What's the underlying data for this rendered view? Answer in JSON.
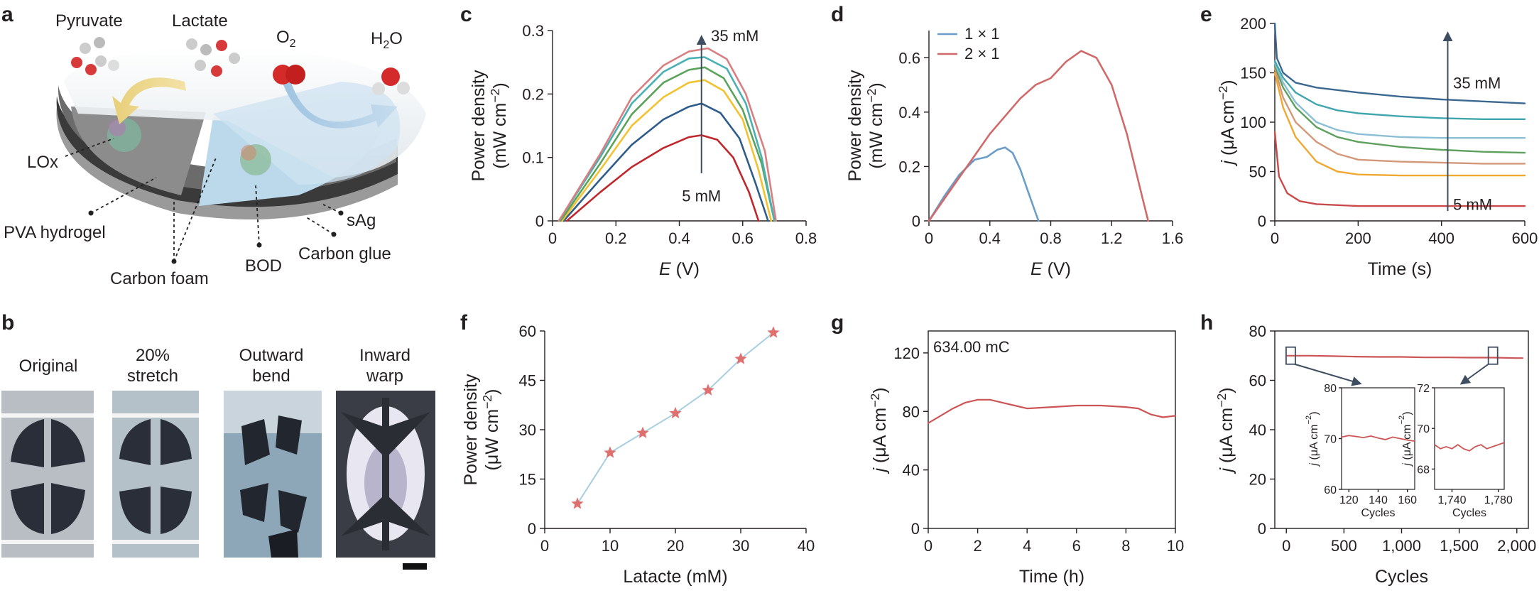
{
  "panels": {
    "a": {
      "letter": "a",
      "labels": {
        "pyruvate": "Pyruvate",
        "lactate": "Lactate",
        "o2": "O",
        "o2_sub": "2",
        "h2o_h": "H",
        "h2o_sub": "2",
        "h2o_o": "O",
        "lox": "LOx",
        "pva": "PVA hydrogel",
        "carbon_foam": "Carbon foam",
        "bod": "BOD",
        "carbon_glue": "Carbon glue",
        "sag": "sAg"
      }
    },
    "b": {
      "letter": "b",
      "photos": [
        {
          "line1": "Original",
          "line2": ""
        },
        {
          "line1": "20%",
          "line2": "stretch"
        },
        {
          "line1": "Outward",
          "line2": "bend"
        },
        {
          "line1": "Inward",
          "line2": "warp"
        }
      ]
    },
    "c": {
      "letter": "c",
      "ann_top": "35 mM",
      "ann_bottom": "5 mM"
    },
    "d": {
      "letter": "d"
    },
    "e": {
      "letter": "e",
      "ann_top": "35 mM",
      "ann_bottom": "5 mM"
    },
    "f": {
      "letter": "f"
    },
    "g": {
      "letter": "g",
      "annotation": "634.00 mC"
    },
    "h": {
      "letter": "h"
    }
  },
  "colors": {
    "c_series": [
      "#c0272d",
      "#2f5d8a",
      "#f2c230",
      "#5ba35b",
      "#4ab0b3",
      "#d97f82"
    ],
    "d_series": [
      "#6a9ec8",
      "#d06a6a"
    ],
    "e_series": [
      "#c94a4a",
      "#f0a830",
      "#d3987a",
      "#5fa05f",
      "#8bbfd6",
      "#3fa6ad",
      "#3b6891"
    ],
    "f_line": "#a8cfe0",
    "f_marker": "#e07070",
    "trace_red": "#cc5555",
    "inset_box": "#3e4e60"
  },
  "chart_data": [
    {
      "id": "c",
      "type": "line",
      "xlabel": "E (V)",
      "ylabel": "Power density (mW cm−2)",
      "xlim": [
        0,
        0.8
      ],
      "ylim": [
        0,
        0.3
      ],
      "xticks": [
        "0",
        "0.2",
        "0.4",
        "0.6",
        "0.8"
      ],
      "yticks": [
        "0",
        "0.1",
        "0.2",
        "0.3"
      ],
      "series": [
        {
          "x": [
            0.045,
            0.15,
            0.25,
            0.35,
            0.43,
            0.47,
            0.52,
            0.57,
            0.62,
            0.65
          ],
          "y": [
            0,
            0.045,
            0.085,
            0.115,
            0.132,
            0.135,
            0.128,
            0.1,
            0.045,
            0
          ]
        },
        {
          "x": [
            0.035,
            0.15,
            0.25,
            0.35,
            0.43,
            0.47,
            0.53,
            0.59,
            0.64,
            0.68
          ],
          "y": [
            0,
            0.065,
            0.12,
            0.16,
            0.18,
            0.185,
            0.17,
            0.13,
            0.06,
            0
          ]
        },
        {
          "x": [
            0.03,
            0.15,
            0.25,
            0.35,
            0.43,
            0.48,
            0.54,
            0.6,
            0.65,
            0.69
          ],
          "y": [
            0,
            0.08,
            0.15,
            0.195,
            0.218,
            0.222,
            0.205,
            0.16,
            0.08,
            0
          ]
        },
        {
          "x": [
            0.025,
            0.15,
            0.25,
            0.35,
            0.43,
            0.48,
            0.54,
            0.6,
            0.66,
            0.7
          ],
          "y": [
            0,
            0.09,
            0.168,
            0.218,
            0.238,
            0.242,
            0.225,
            0.175,
            0.09,
            0
          ]
        },
        {
          "x": [
            0.02,
            0.15,
            0.25,
            0.35,
            0.43,
            0.48,
            0.55,
            0.61,
            0.66,
            0.7
          ],
          "y": [
            0,
            0.1,
            0.185,
            0.235,
            0.256,
            0.258,
            0.24,
            0.185,
            0.1,
            0
          ]
        },
        {
          "x": [
            0.02,
            0.15,
            0.25,
            0.35,
            0.43,
            0.49,
            0.55,
            0.61,
            0.67,
            0.705
          ],
          "y": [
            0,
            0.105,
            0.195,
            0.245,
            0.267,
            0.272,
            0.255,
            0.2,
            0.11,
            0
          ]
        }
      ]
    },
    {
      "id": "d",
      "type": "line",
      "xlabel": "E (V)",
      "ylabel": "Power density (mW cm−2)",
      "xlim": [
        0,
        1.6
      ],
      "ylim": [
        0,
        0.7
      ],
      "xticks": [
        "0",
        "0.4",
        "0.8",
        "1.2",
        "1.6"
      ],
      "yticks": [
        "0",
        "0.2",
        "0.4",
        "0.6"
      ],
      "series": [
        {
          "name": "1 × 1",
          "x": [
            0,
            0.1,
            0.2,
            0.3,
            0.38,
            0.45,
            0.5,
            0.55,
            0.6,
            0.65,
            0.7,
            0.72
          ],
          "y": [
            0,
            0.09,
            0.17,
            0.225,
            0.235,
            0.262,
            0.27,
            0.25,
            0.19,
            0.11,
            0.03,
            0
          ]
        },
        {
          "name": "2 × 1",
          "x": [
            0,
            0.2,
            0.4,
            0.6,
            0.7,
            0.8,
            0.9,
            1.0,
            1.1,
            1.2,
            1.3,
            1.4,
            1.44
          ],
          "y": [
            0,
            0.16,
            0.32,
            0.45,
            0.5,
            0.525,
            0.585,
            0.625,
            0.6,
            0.5,
            0.32,
            0.09,
            0
          ]
        }
      ]
    },
    {
      "id": "e",
      "type": "line",
      "xlabel": "Time (s)",
      "ylabel": "j (μA cm−2)",
      "xlim": [
        0,
        600
      ],
      "ylim": [
        0,
        200
      ],
      "xticks": [
        "0",
        "200",
        "400",
        "600"
      ],
      "yticks": [
        "0",
        "50",
        "100",
        "150",
        "200"
      ],
      "series": [
        {
          "x": [
            0,
            10,
            30,
            60,
            100,
            200,
            300,
            400,
            500,
            600
          ],
          "y": [
            90,
            45,
            28,
            20,
            17,
            15,
            15,
            15,
            15,
            15
          ]
        },
        {
          "x": [
            0,
            20,
            50,
            100,
            150,
            200,
            300,
            400,
            500,
            600
          ],
          "y": [
            150,
            115,
            85,
            60,
            50,
            47,
            46,
            46,
            46,
            46
          ]
        },
        {
          "x": [
            0,
            20,
            50,
            100,
            150,
            200,
            300,
            400,
            500,
            600
          ],
          "y": [
            155,
            125,
            100,
            80,
            68,
            62,
            60,
            59,
            58,
            58
          ]
        },
        {
          "x": [
            0,
            20,
            50,
            100,
            150,
            200,
            300,
            400,
            500,
            600
          ],
          "y": [
            157,
            135,
            115,
            95,
            85,
            80,
            75,
            72,
            70,
            69
          ]
        },
        {
          "x": [
            0,
            20,
            50,
            100,
            150,
            200,
            300,
            400,
            500,
            600
          ],
          "y": [
            160,
            140,
            120,
            100,
            92,
            88,
            85,
            84,
            84,
            84
          ]
        },
        {
          "x": [
            0,
            20,
            50,
            100,
            150,
            200,
            300,
            400,
            500,
            600
          ],
          "y": [
            162,
            145,
            130,
            118,
            112,
            109,
            106,
            104,
            103,
            103
          ]
        },
        {
          "x": [
            0,
            5,
            20,
            50,
            100,
            200,
            300,
            400,
            500,
            600
          ],
          "y": [
            200,
            165,
            150,
            140,
            135,
            130,
            126,
            123,
            121,
            119
          ]
        }
      ]
    },
    {
      "id": "f",
      "type": "line",
      "xlabel": "Latacte (mM)",
      "ylabel": "Power density (μW cm−2)",
      "xlim": [
        0,
        40
      ],
      "ylim": [
        0,
        60
      ],
      "xticks": [
        "0",
        "10",
        "20",
        "30",
        "40"
      ],
      "yticks": [
        "0",
        "15",
        "30",
        "45",
        "60"
      ],
      "series": [
        {
          "x": [
            5,
            10,
            15,
            20,
            25,
            30,
            35
          ],
          "y": [
            7.5,
            23,
            29,
            35,
            42,
            51.5,
            59.5
          ]
        }
      ]
    },
    {
      "id": "g",
      "type": "line",
      "xlabel": "Time (h)",
      "ylabel": "j (μA cm−2)",
      "xlim": [
        0,
        10
      ],
      "ylim": [
        0,
        135
      ],
      "xticks": [
        "0",
        "2",
        "4",
        "6",
        "8",
        "10"
      ],
      "yticks": [
        "0",
        "40",
        "80",
        "120"
      ],
      "series": [
        {
          "x": [
            0,
            0.5,
            1,
            1.5,
            2,
            2.5,
            3,
            3.5,
            4,
            5,
            6,
            7,
            8,
            8.5,
            9,
            9.5,
            10
          ],
          "y": [
            72,
            77,
            82,
            86,
            88,
            88,
            86,
            84,
            82,
            83,
            84,
            84,
            83,
            82,
            78,
            76,
            77
          ]
        }
      ]
    },
    {
      "id": "h",
      "type": "line",
      "xlabel": "Cycles",
      "ylabel": "j (μA cm−2)",
      "xlim": [
        -100,
        2100
      ],
      "ylim": [
        0,
        80
      ],
      "xticks": [
        "0",
        "500",
        "1,000",
        "1,500",
        "2,000"
      ],
      "yticks": [
        "0",
        "20",
        "40",
        "60",
        "80"
      ],
      "series": [
        {
          "x": [
            0,
            200,
            400,
            600,
            800,
            1000,
            1200,
            1400,
            1600,
            1800,
            2000,
            2050
          ],
          "y": [
            70,
            70,
            69.8,
            69.6,
            69.5,
            69.5,
            69.3,
            69.3,
            69.2,
            69.2,
            69,
            69
          ]
        }
      ],
      "insets": [
        {
          "xlabel": "Cycles",
          "ylabel": "j (μA cm−2)",
          "xlim": [
            115,
            165
          ],
          "ylim": [
            60,
            80
          ],
          "xticks": [
            "120",
            "140",
            "160"
          ],
          "yticks": [
            "60",
            "70",
            "80"
          ],
          "x": [
            115,
            120,
            125,
            130,
            135,
            140,
            145,
            150,
            155,
            160,
            165
          ],
          "y": [
            70.3,
            70.6,
            70.4,
            70.2,
            70.5,
            70.1,
            69.8,
            70.3,
            70.0,
            69.7,
            69.5
          ]
        },
        {
          "xlabel": "Cycles",
          "ylabel": "j (μA cm−2)",
          "xlim": [
            1725,
            1785
          ],
          "ylim": [
            67,
            72
          ],
          "xticks": [
            "1,740",
            "1,780"
          ],
          "yticks": [
            "68",
            "70",
            "72"
          ],
          "x": [
            1725,
            1730,
            1735,
            1740,
            1745,
            1750,
            1755,
            1760,
            1765,
            1770,
            1775,
            1780,
            1785
          ],
          "y": [
            69.2,
            69.0,
            69.1,
            69.0,
            69.2,
            69.0,
            68.9,
            69.1,
            69.2,
            69.0,
            69.1,
            69.2,
            69.3
          ]
        }
      ]
    }
  ]
}
